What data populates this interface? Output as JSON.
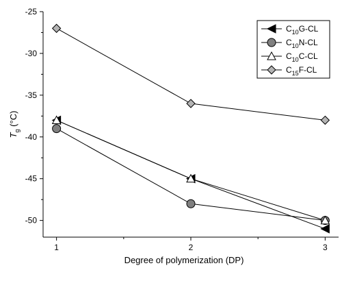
{
  "chart_data": {
    "type": "line",
    "title": "",
    "xlabel": "Degree of polymerization (DP)",
    "ylabel": {
      "main": "T",
      "sub": "g",
      "unit": " (°C)"
    },
    "x": [
      1,
      2,
      3
    ],
    "xticks": [
      1,
      2,
      3
    ],
    "xlim": [
      0.9,
      3.1
    ],
    "ylim": [
      -52,
      -25
    ],
    "yticks": [
      -50,
      -45,
      -40,
      -35,
      -30,
      -25
    ],
    "grid": false,
    "legend_position": "top-right",
    "series": [
      {
        "name": {
          "pre": "C",
          "sub": "10",
          "post": "G-CL"
        },
        "marker": "triangle-left",
        "fill": "#000000",
        "values": [
          -38,
          -45,
          -51
        ]
      },
      {
        "name": {
          "pre": "C",
          "sub": "10",
          "post": "N-CL"
        },
        "marker": "circle",
        "fill": "#808080",
        "values": [
          -39,
          -48,
          -50
        ]
      },
      {
        "name": {
          "pre": "C",
          "sub": "10",
          "post": "C-CL"
        },
        "marker": "triangle-up",
        "fill": "#ffffff",
        "values": [
          -38,
          -45,
          -50
        ]
      },
      {
        "name": {
          "pre": "C",
          "sub": "15",
          "post": "F-CL"
        },
        "marker": "diamond",
        "fill": "#b4b4b4",
        "values": [
          -27,
          -36,
          -38
        ]
      }
    ]
  }
}
